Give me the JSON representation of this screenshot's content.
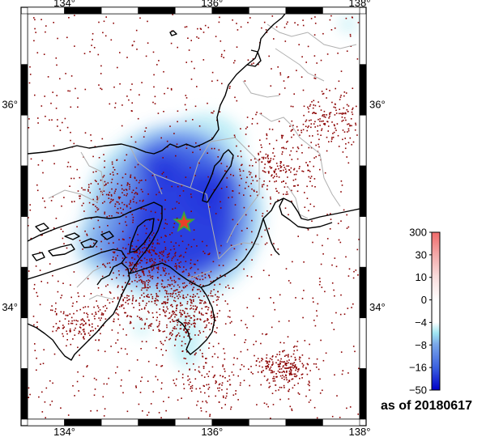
{
  "map": {
    "lon_range": [
      133.5,
      138.0
    ],
    "lat_range": [
      32.9,
      36.9
    ],
    "x_ticks": [
      {
        "value": 134,
        "label": "134°"
      },
      {
        "value": 136,
        "label": "136°"
      },
      {
        "value": 138,
        "label": "138°"
      }
    ],
    "y_ticks": [
      {
        "value": 34,
        "label": "34°"
      },
      {
        "value": 36,
        "label": "36°"
      }
    ],
    "epicenter": {
      "lon": 135.62,
      "lat": 34.84,
      "color": "#e8402a",
      "outline": "#3aa63a"
    },
    "seismicity_color": "#8b0000"
  },
  "colorbar": {
    "labels": [
      "300",
      "30",
      "10",
      "0",
      "−4",
      "−8",
      "−16",
      "−50"
    ],
    "colors": [
      "#f08080",
      "#f4b4b4",
      "#f9dada",
      "#ffffff",
      "#ffffff",
      "#9fe6f2",
      "#6f9be9",
      "#3a5fe0",
      "#0000cc"
    ]
  },
  "date_label": "as of 20180617"
}
